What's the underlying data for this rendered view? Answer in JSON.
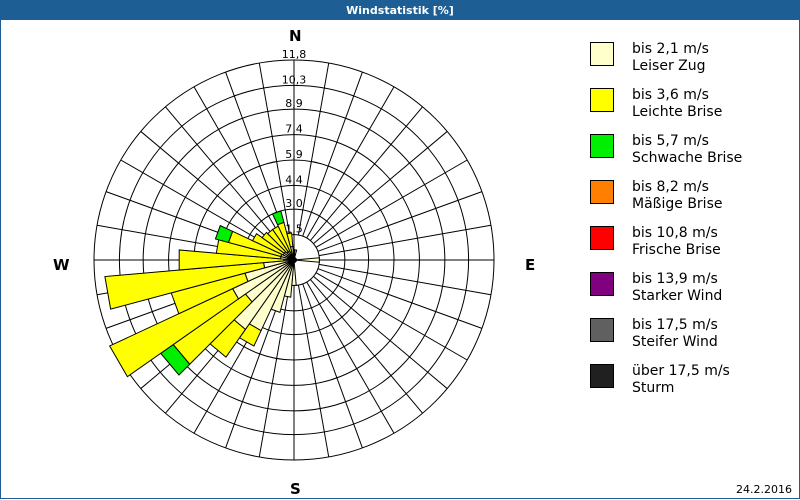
{
  "title": "Windstatistik [%]",
  "date": "24.2.2016",
  "compass": {
    "n": "N",
    "e": "E",
    "s": "S",
    "w": "W"
  },
  "legend": [
    {
      "range": "bis 2,1 m/s",
      "name": "Leiser Zug",
      "color": "#ffffcc"
    },
    {
      "range": "bis 3,6 m/s",
      "name": "Leichte Brise",
      "color": "#ffff00"
    },
    {
      "range": "bis 5,7 m/s",
      "name": "Schwache Brise",
      "color": "#00ee00"
    },
    {
      "range": "bis 8,2 m/s",
      "name": "Mäßige Brise",
      "color": "#ff8000"
    },
    {
      "range": "bis 10,8 m/s",
      "name": "Frische Brise",
      "color": "#ff0000"
    },
    {
      "range": "bis 13,9 m/s",
      "name": "Starker Wind",
      "color": "#800080"
    },
    {
      "range": "bis 17,5 m/s",
      "name": "Steifer Wind",
      "color": "#606060"
    },
    {
      "range": "über 17,5 m/s",
      "name": "Sturm",
      "color": "#202020"
    }
  ],
  "chart_data": {
    "type": "polar-bar (wind rose)",
    "title": "Windstatistik [%]",
    "radial_ticks": [
      "1,5",
      "3,0",
      "4,4",
      "5,9",
      "7,4",
      "8,9",
      "10,3",
      "11,8"
    ],
    "radial_values": [
      1.5,
      3.0,
      4.4,
      5.9,
      7.4,
      8.9,
      10.3,
      11.8
    ],
    "rmax": 11.8,
    "sector_width_deg": 10,
    "direction_labels": [
      "N",
      "E",
      "S",
      "W"
    ],
    "series_names": [
      "bis 2,1 m/s",
      "bis 3,6 m/s",
      "bis 5,7 m/s"
    ],
    "sectors": [
      {
        "dir": 0,
        "values": [
          0.5,
          0,
          0
        ]
      },
      {
        "dir": 10,
        "values": [
          0.6,
          0,
          0
        ]
      },
      {
        "dir": 90,
        "values": [
          1.5,
          0,
          0
        ]
      },
      {
        "dir": 180,
        "values": [
          1.5,
          0,
          0
        ]
      },
      {
        "dir": 190,
        "values": [
          2.2,
          0,
          0
        ]
      },
      {
        "dir": 200,
        "values": [
          3.2,
          0,
          0
        ]
      },
      {
        "dir": 210,
        "values": [
          4.6,
          1.0,
          0
        ]
      },
      {
        "dir": 220,
        "values": [
          5.0,
          2.0,
          0
        ]
      },
      {
        "dir": 230,
        "values": [
          3.5,
          5.2,
          0.9
        ]
      },
      {
        "dir": 240,
        "values": [
          4.0,
          8.0,
          0
        ]
      },
      {
        "dir": 250,
        "values": [
          3.0,
          4.5,
          0
        ]
      },
      {
        "dir": 260,
        "values": [
          1.8,
          9.4,
          0
        ]
      },
      {
        "dir": 270,
        "values": [
          0.6,
          6.2,
          0
        ]
      },
      {
        "dir": 280,
        "values": [
          0.8,
          3.8,
          0
        ]
      },
      {
        "dir": 290,
        "values": [
          0.8,
          3.2,
          0.8
        ]
      },
      {
        "dir": 300,
        "values": [
          0.7,
          2.0,
          0
        ]
      },
      {
        "dir": 310,
        "values": [
          0.7,
          1.6,
          0
        ]
      },
      {
        "dir": 320,
        "values": [
          0.6,
          1.6,
          0
        ]
      },
      {
        "dir": 330,
        "values": [
          0.6,
          1.6,
          0
        ]
      },
      {
        "dir": 340,
        "values": [
          0.5,
          1.8,
          0.7
        ]
      },
      {
        "dir": 350,
        "values": [
          0.8,
          0.8,
          0
        ]
      }
    ]
  }
}
